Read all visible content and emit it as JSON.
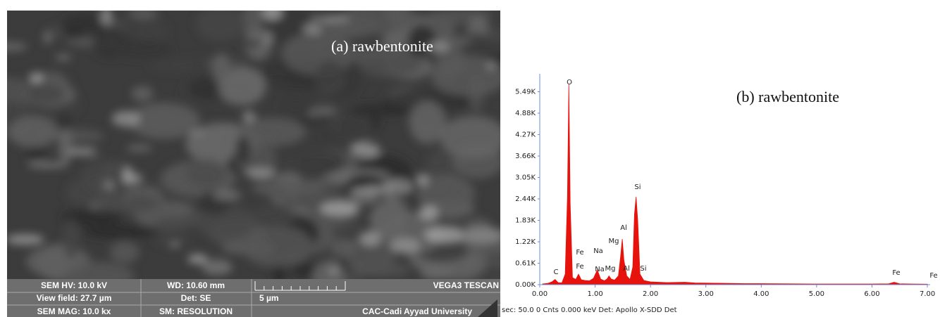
{
  "sem_panel": {
    "label": "(a) rawbentonite",
    "info_bar": {
      "hv": "SEM HV: 10.0 kV",
      "wd": "WD: 10.60 mm",
      "brand": "VEGA3 TESCAN",
      "view_field": "View field: 27.7 µm",
      "detector": "Det: SE",
      "scale": "5 µm",
      "magnification": "SEM MAG: 10.0 kx",
      "scan_mode": "SM: RESOLUTION",
      "institution": "CAC-Cadi Ayyad University"
    }
  },
  "chart_data": {
    "type": "area",
    "title": "(b) rawbentonite",
    "color": "#e8120c",
    "x": [
      0.05,
      0.15,
      0.22,
      0.277,
      0.33,
      0.4,
      0.46,
      0.5,
      0.525,
      0.55,
      0.59,
      0.65,
      0.7,
      0.75,
      0.82,
      0.9,
      0.97,
      1.04,
      1.1,
      1.17,
      1.22,
      1.25,
      1.29,
      1.35,
      1.42,
      1.46,
      1.49,
      1.52,
      1.57,
      1.63,
      1.68,
      1.71,
      1.74,
      1.77,
      1.81,
      1.88,
      2.0,
      2.3,
      2.62,
      2.8,
      3.3,
      3.7,
      4.0,
      4.5,
      5.0,
      5.5,
      6.0,
      6.3,
      6.4,
      6.5,
      6.7,
      7.0
    ],
    "values": [
      20,
      40,
      80,
      150,
      60,
      50,
      300,
      2500,
      5700,
      2300,
      200,
      150,
      300,
      140,
      120,
      110,
      180,
      420,
      160,
      110,
      170,
      250,
      160,
      130,
      250,
      800,
      1300,
      700,
      250,
      150,
      500,
      2000,
      2500,
      1800,
      300,
      120,
      80,
      60,
      70,
      50,
      40,
      30,
      30,
      25,
      20,
      20,
      20,
      25,
      70,
      25,
      20,
      15
    ],
    "xlim": [
      0,
      7.05
    ],
    "xticks": [
      {
        "value": 0,
        "label": "0.00"
      },
      {
        "value": 1,
        "label": "1.00"
      },
      {
        "value": 2,
        "label": "2.00"
      },
      {
        "value": 3,
        "label": "3.00"
      },
      {
        "value": 4,
        "label": "4.00"
      },
      {
        "value": 5,
        "label": "5.00"
      },
      {
        "value": 6,
        "label": "6.00"
      },
      {
        "value": 7,
        "label": "7.00"
      }
    ],
    "ylim": [
      0,
      6000
    ],
    "yticks": [
      {
        "value": 0,
        "label": "0.00K"
      },
      {
        "value": 610,
        "label": "0.61K"
      },
      {
        "value": 1220,
        "label": "1.22K"
      },
      {
        "value": 1830,
        "label": "1.83K"
      },
      {
        "value": 2440,
        "label": "2.44K"
      },
      {
        "value": 3050,
        "label": "3.05K"
      },
      {
        "value": 3660,
        "label": "3.66K"
      },
      {
        "value": 4270,
        "label": "4.27K"
      },
      {
        "value": 4880,
        "label": "4.88K"
      },
      {
        "value": 5490,
        "label": "5.49K"
      }
    ],
    "peak_labels": [
      "C",
      "O",
      "Fe",
      "Fe",
      "Na",
      "Na",
      "Mg",
      "Mg",
      "Al",
      "Al",
      "Si",
      "Si",
      "Fe",
      "Fe"
    ],
    "footer": "sec: 50.0 0 Cnts  0.000 keV Det: Apollo X-SDD Det"
  }
}
